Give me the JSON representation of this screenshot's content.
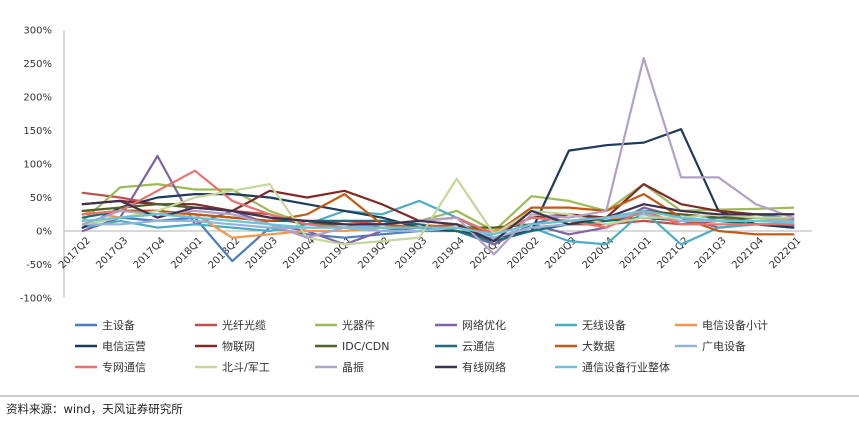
{
  "chart_data": {
    "type": "line",
    "title": "",
    "xlabel": "",
    "ylabel": "",
    "x": [
      "2017Q2",
      "2017Q3",
      "2017Q4",
      "2018Q1",
      "2018Q2",
      "2018Q3",
      "2018Q4",
      "2019Q1",
      "2019Q2",
      "2019Q3",
      "2019Q4",
      "2020Q1",
      "2020Q2",
      "2020Q3",
      "2020Q4",
      "2021Q1",
      "2021Q2",
      "2021Q3",
      "2021Q4",
      "2022Q1"
    ],
    "y_ticks": [
      "300%",
      "250%",
      "200%",
      "150%",
      "100%",
      "50%",
      "0%",
      "-50%",
      "-100%"
    ],
    "ylim": [
      -100,
      300
    ],
    "grid": false,
    "legend_position": "bottom",
    "series": [
      {
        "name": "主设备",
        "color": "#4a7ebb",
        "values": [
          10,
          20,
          15,
          20,
          -45,
          5,
          -5,
          -10,
          -5,
          0,
          0,
          -20,
          10,
          25,
          15,
          30,
          10,
          20,
          25,
          18
        ]
      },
      {
        "name": "光纤光缆",
        "color": "#c0504d",
        "values": [
          57,
          50,
          40,
          35,
          30,
          25,
          10,
          15,
          10,
          5,
          0,
          -10,
          5,
          10,
          10,
          15,
          10,
          15,
          20,
          15
        ]
      },
      {
        "name": "光器件",
        "color": "#9bbb59",
        "values": [
          15,
          65,
          70,
          62,
          62,
          30,
          10,
          5,
          10,
          15,
          30,
          0,
          52,
          45,
          30,
          70,
          30,
          32,
          33,
          35
        ]
      },
      {
        "name": "网络优化",
        "color": "#8064a2",
        "values": [
          0,
          20,
          112,
          10,
          30,
          10,
          0,
          -20,
          0,
          5,
          10,
          -20,
          10,
          -5,
          5,
          35,
          20,
          5,
          10,
          8
        ]
      },
      {
        "name": "无线设备",
        "color": "#4bacc6",
        "values": [
          5,
          15,
          5,
          10,
          5,
          0,
          10,
          30,
          25,
          45,
          20,
          -10,
          5,
          -15,
          -20,
          30,
          -20,
          5,
          10,
          5
        ]
      },
      {
        "name": "电信设备小计",
        "color": "#f79646",
        "values": [
          30,
          20,
          25,
          25,
          -10,
          -5,
          0,
          0,
          5,
          10,
          5,
          0,
          20,
          15,
          15,
          30,
          25,
          20,
          20,
          15
        ]
      },
      {
        "name": "电信运营",
        "color": "#1f3a5c",
        "values": [
          5,
          35,
          50,
          55,
          55,
          50,
          40,
          30,
          20,
          5,
          0,
          -10,
          0,
          120,
          128,
          132,
          152,
          30,
          10,
          5
        ]
      },
      {
        "name": "物联网",
        "color": "#7f2a26",
        "values": [
          40,
          45,
          40,
          40,
          30,
          60,
          50,
          60,
          40,
          15,
          20,
          -5,
          20,
          25,
          20,
          70,
          40,
          30,
          25,
          25
        ]
      },
      {
        "name": "IDC/CDN",
        "color": "#4f6228",
        "values": [
          30,
          35,
          40,
          35,
          30,
          20,
          10,
          10,
          5,
          5,
          5,
          5,
          10,
          15,
          20,
          30,
          25,
          20,
          20,
          20
        ]
      },
      {
        "name": "云通信",
        "color": "#1f6b75",
        "values": [
          20,
          30,
          30,
          25,
          20,
          15,
          15,
          15,
          15,
          10,
          0,
          -15,
          0,
          10,
          15,
          20,
          15,
          15,
          10,
          10
        ]
      },
      {
        "name": "大数据",
        "color": "#c65911",
        "values": [
          25,
          30,
          30,
          25,
          20,
          15,
          25,
          55,
          10,
          5,
          10,
          -5,
          35,
          35,
          30,
          55,
          20,
          0,
          -5,
          -5
        ]
      },
      {
        "name": "广电设备",
        "color": "#95b3d7",
        "values": [
          10,
          10,
          15,
          15,
          10,
          5,
          5,
          5,
          0,
          0,
          5,
          -10,
          5,
          10,
          20,
          25,
          15,
          15,
          15,
          15
        ]
      },
      {
        "name": "专网通信",
        "color": "#e6736e",
        "values": [
          25,
          30,
          60,
          90,
          45,
          25,
          10,
          5,
          10,
          15,
          20,
          -5,
          20,
          15,
          5,
          30,
          10,
          10,
          10,
          10
        ]
      },
      {
        "name": "北斗/军工",
        "color": "#c4d79b",
        "values": [
          10,
          20,
          30,
          50,
          60,
          70,
          -10,
          -20,
          -15,
          -10,
          78,
          -5,
          30,
          25,
          10,
          20,
          20,
          25,
          20,
          20
        ]
      },
      {
        "name": "晶振",
        "color": "#b1a0c7",
        "values": [
          10,
          30,
          25,
          30,
          25,
          10,
          -10,
          5,
          10,
          15,
          20,
          -35,
          25,
          20,
          30,
          258,
          80,
          80,
          40,
          20
        ]
      },
      {
        "name": "有线网络",
        "color": "#403151",
        "values": [
          40,
          45,
          20,
          35,
          30,
          20,
          15,
          10,
          10,
          15,
          10,
          -15,
          30,
          10,
          20,
          40,
          30,
          25,
          25,
          25
        ]
      },
      {
        "name": "通信设备行业整体",
        "color": "#6bc4d6",
        "values": [
          15,
          20,
          25,
          20,
          15,
          10,
          5,
          5,
          5,
          5,
          5,
          -5,
          10,
          15,
          20,
          30,
          20,
          15,
          15,
          12
        ]
      }
    ]
  },
  "source_note": "资料来源：wind，天风证券研究所"
}
